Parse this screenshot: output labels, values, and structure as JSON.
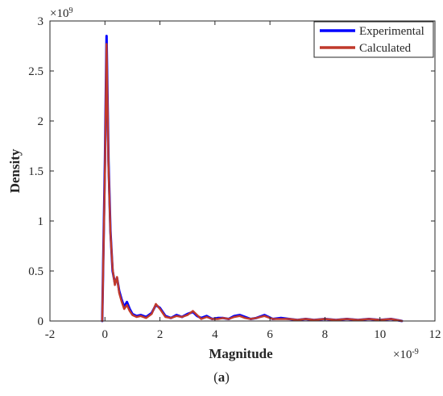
{
  "chart_data": {
    "type": "line",
    "title": "",
    "xlabel": "Magnitude",
    "ylabel": "Density",
    "x_exponent_label": "×10",
    "x_exponent_power": "-9",
    "y_exponent_label": "×10",
    "y_exponent_power": "9",
    "caption_open": "(",
    "caption_letter": "a",
    "caption_close": ")",
    "xlim": [
      -2,
      12
    ],
    "ylim": [
      0,
      3
    ],
    "xticks": [
      -2,
      0,
      2,
      4,
      6,
      8,
      10,
      12
    ],
    "yticks": [
      0,
      0.5,
      1,
      1.5,
      2,
      2.5,
      3
    ],
    "xtick_labels": [
      "-2",
      "0",
      "2",
      "4",
      "6",
      "8",
      "10",
      "12"
    ],
    "ytick_labels": [
      "0",
      "0.5",
      "1",
      "1.5",
      "2",
      "2.5",
      "3"
    ],
    "grid": false,
    "legend_position": "top-right",
    "series": [
      {
        "name": "Experimental",
        "color": "#0000ff",
        "x": [
          -0.1,
          0.0,
          0.06,
          0.13,
          0.2,
          0.28,
          0.36,
          0.44,
          0.52,
          0.6,
          0.7,
          0.8,
          0.9,
          1.0,
          1.15,
          1.3,
          1.5,
          1.7,
          1.85,
          2.0,
          2.2,
          2.4,
          2.6,
          2.8,
          3.0,
          3.2,
          3.35,
          3.5,
          3.7,
          3.9,
          4.1,
          4.3,
          4.5,
          4.7,
          4.9,
          5.1,
          5.3,
          5.5,
          5.8,
          6.1,
          6.4,
          6.7,
          7.0,
          7.3,
          7.6,
          8.0,
          8.4,
          8.8,
          9.2,
          9.6,
          10.0,
          10.4,
          10.8
        ],
        "values": [
          0.0,
          1.6,
          2.85,
          1.6,
          0.9,
          0.5,
          0.38,
          0.43,
          0.3,
          0.22,
          0.14,
          0.19,
          0.12,
          0.07,
          0.05,
          0.06,
          0.04,
          0.08,
          0.16,
          0.13,
          0.05,
          0.03,
          0.06,
          0.04,
          0.07,
          0.09,
          0.05,
          0.03,
          0.05,
          0.02,
          0.03,
          0.03,
          0.02,
          0.05,
          0.06,
          0.04,
          0.02,
          0.03,
          0.06,
          0.02,
          0.03,
          0.02,
          0.01,
          0.02,
          0.01,
          0.02,
          0.01,
          0.02,
          0.01,
          0.02,
          0.01,
          0.02,
          0.0
        ]
      },
      {
        "name": "Calculated",
        "color": "#c0392b",
        "x": [
          -0.1,
          0.0,
          0.06,
          0.13,
          0.2,
          0.28,
          0.36,
          0.44,
          0.52,
          0.6,
          0.7,
          0.8,
          0.9,
          1.0,
          1.15,
          1.3,
          1.5,
          1.7,
          1.85,
          2.0,
          2.2,
          2.4,
          2.6,
          2.8,
          3.0,
          3.2,
          3.35,
          3.5,
          3.7,
          3.9,
          4.1,
          4.3,
          4.5,
          4.7,
          4.9,
          5.1,
          5.3,
          5.5,
          5.8,
          6.1,
          6.4,
          6.7,
          7.0,
          7.3,
          7.6,
          8.0,
          8.4,
          8.8,
          9.2,
          9.6,
          10.0,
          10.4,
          10.8
        ],
        "values": [
          0.0,
          1.5,
          2.77,
          1.55,
          0.88,
          0.52,
          0.36,
          0.44,
          0.28,
          0.2,
          0.12,
          0.16,
          0.1,
          0.06,
          0.04,
          0.05,
          0.03,
          0.07,
          0.17,
          0.12,
          0.04,
          0.03,
          0.05,
          0.04,
          0.06,
          0.1,
          0.06,
          0.02,
          0.04,
          0.02,
          0.02,
          0.03,
          0.02,
          0.04,
          0.05,
          0.03,
          0.02,
          0.03,
          0.05,
          0.02,
          0.02,
          0.02,
          0.01,
          0.02,
          0.01,
          0.02,
          0.01,
          0.02,
          0.01,
          0.02,
          0.01,
          0.02,
          0.0
        ]
      }
    ]
  }
}
